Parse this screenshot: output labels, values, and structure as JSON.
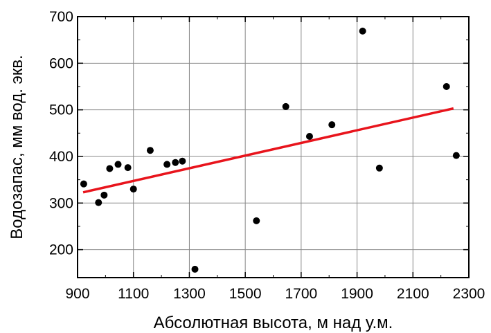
{
  "chart_data": {
    "type": "scatter",
    "title": "",
    "xlabel": "Абсолютная высота, м над у.м.",
    "ylabel": "Водозапас, мм вод. экв.",
    "xlim": [
      900,
      2300
    ],
    "ylim": [
      140,
      700
    ],
    "x_ticks": [
      900,
      1100,
      1300,
      1500,
      1700,
      1900,
      2100,
      2300
    ],
    "y_ticks": [
      200,
      300,
      400,
      500,
      600,
      700
    ],
    "x_ticks_minor": [
      1000,
      1200,
      1400,
      1600,
      1800,
      2000,
      2200
    ],
    "y_ticks_minor": [
      250,
      350,
      450,
      550,
      650
    ],
    "grid": true,
    "colors": {
      "points": "#000000",
      "trend": "#e8141c",
      "grid": "#888888"
    },
    "series": [
      {
        "kind": "points",
        "points": [
          {
            "x": 922,
            "y": 341
          },
          {
            "x": 975,
            "y": 301
          },
          {
            "x": 995,
            "y": 317
          },
          {
            "x": 1015,
            "y": 374
          },
          {
            "x": 1045,
            "y": 383
          },
          {
            "x": 1080,
            "y": 376
          },
          {
            "x": 1100,
            "y": 330
          },
          {
            "x": 1160,
            "y": 413
          },
          {
            "x": 1220,
            "y": 383
          },
          {
            "x": 1250,
            "y": 387
          },
          {
            "x": 1275,
            "y": 390
          },
          {
            "x": 1320,
            "y": 158
          },
          {
            "x": 1540,
            "y": 262
          },
          {
            "x": 1645,
            "y": 507
          },
          {
            "x": 1730,
            "y": 443
          },
          {
            "x": 1810,
            "y": 468
          },
          {
            "x": 1920,
            "y": 669
          },
          {
            "x": 1980,
            "y": 375
          },
          {
            "x": 2220,
            "y": 550
          },
          {
            "x": 2255,
            "y": 402
          }
        ]
      },
      {
        "kind": "trend",
        "points": [
          {
            "x": 920,
            "y": 323
          },
          {
            "x": 2245,
            "y": 503
          }
        ]
      }
    ]
  }
}
